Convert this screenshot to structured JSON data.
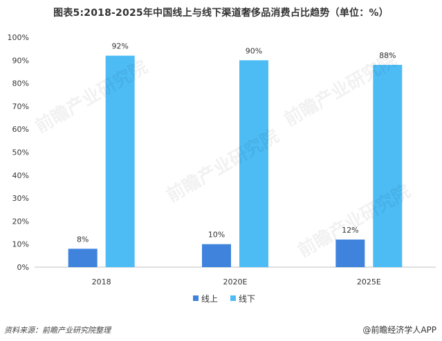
{
  "title": "图表5:2018-2025年中国线上与线下渠道奢侈品消费占比趋势（单位：%）",
  "source": "资料来源：前瞻产业研究院整理",
  "brand": "@前瞻经济学人APP",
  "watermark": "前瞻产业研究院",
  "colors": {
    "online": "#3f83dc",
    "offline": "#4dbcf5",
    "axis": "#bfbfbf",
    "text": "#333333"
  },
  "chart_data": {
    "type": "bar",
    "categories": [
      "2018",
      "2020E",
      "2025E"
    ],
    "series": [
      {
        "name": "线上",
        "values": [
          8,
          10,
          12
        ],
        "labels": [
          "8%",
          "10%",
          "12%"
        ]
      },
      {
        "name": "线下",
        "values": [
          92,
          90,
          88
        ],
        "labels": [
          "92%",
          "90%",
          "88%"
        ]
      }
    ],
    "yticks": [
      "0%",
      "10%",
      "20%",
      "30%",
      "40%",
      "50%",
      "60%",
      "70%",
      "80%",
      "90%",
      "100%"
    ],
    "ylim": [
      0,
      100
    ],
    "legend": "bottom-center",
    "grid": false
  }
}
